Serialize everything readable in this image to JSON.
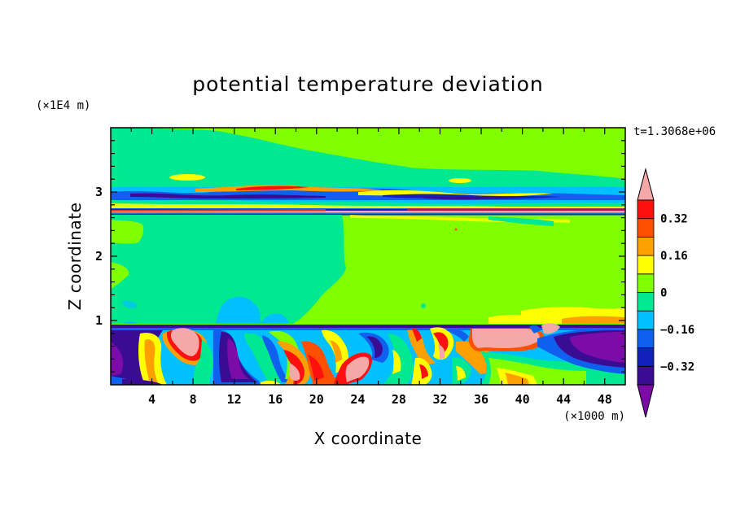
{
  "chart_data": {
    "type": "heatmap",
    "title": "potential temperature deviation",
    "xlabel": "X coordinate",
    "ylabel": "Z coordinate",
    "x_unit": "(×1000 m)",
    "y_unit": "(×1E4 m)",
    "time_label": "t=1.3068e+06",
    "xlim": [
      0,
      50
    ],
    "ylim": [
      0,
      4
    ],
    "x_ticks": [
      4,
      8,
      12,
      16,
      20,
      24,
      28,
      32,
      36,
      40,
      44,
      48
    ],
    "y_ticks": [
      1,
      2,
      3
    ],
    "colorbar": {
      "levels": [
        -0.4,
        -0.32,
        -0.24,
        -0.16,
        -0.08,
        0,
        0.08,
        0.16,
        0.24,
        0.32,
        0.4
      ],
      "labels": [
        "0.32",
        "0.16",
        "0",
        "−0.16",
        "−0.32"
      ],
      "label_values": [
        0.32,
        0.16,
        0,
        -0.16,
        -0.32
      ],
      "colors": [
        "#7b0ca8",
        "#3a0c94",
        "#1020b8",
        "#1060f0",
        "#00c0ff",
        "#00e890",
        "#80ff00",
        "#ffff00",
        "#ffa000",
        "#ff5000",
        "#ff1010",
        "#f4a8a8"
      ],
      "extend": "both"
    }
  }
}
